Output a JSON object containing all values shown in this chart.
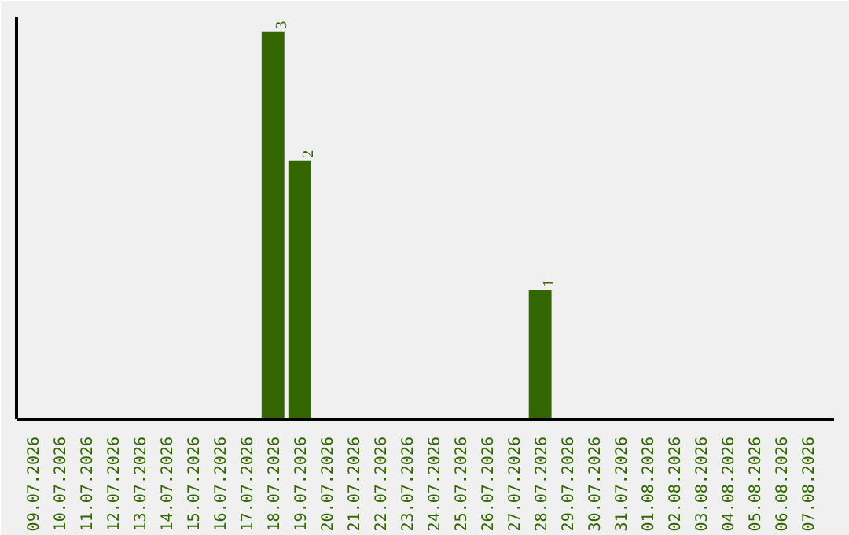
{
  "chart_data": {
    "type": "bar",
    "categories": [
      "09.07.2026",
      "10.07.2026",
      "11.07.2026",
      "12.07.2026",
      "13.07.2026",
      "14.07.2026",
      "15.07.2026",
      "16.07.2026",
      "17.07.2026",
      "18.07.2026",
      "19.07.2026",
      "20.07.2026",
      "21.07.2026",
      "22.07.2026",
      "23.07.2026",
      "24.07.2026",
      "25.07.2026",
      "26.07.2026",
      "27.07.2026",
      "28.07.2026",
      "29.07.2026",
      "30.07.2026",
      "31.07.2026",
      "01.08.2026",
      "02.08.2026",
      "03.08.2026",
      "04.08.2026",
      "05.08.2026",
      "06.08.2026",
      "07.08.2026"
    ],
    "values": [
      0,
      0,
      0,
      0,
      0,
      0,
      0,
      0,
      0,
      3,
      2,
      0,
      0,
      0,
      0,
      0,
      0,
      0,
      0,
      1,
      0,
      0,
      0,
      0,
      0,
      0,
      0,
      0,
      0,
      0
    ],
    "value_labels": [
      null,
      null,
      null,
      null,
      null,
      null,
      null,
      null,
      null,
      "3",
      "2",
      null,
      null,
      null,
      null,
      null,
      null,
      null,
      null,
      "1",
      null,
      null,
      null,
      null,
      null,
      null,
      null,
      null,
      null,
      null
    ],
    "color": "#336600"
  }
}
